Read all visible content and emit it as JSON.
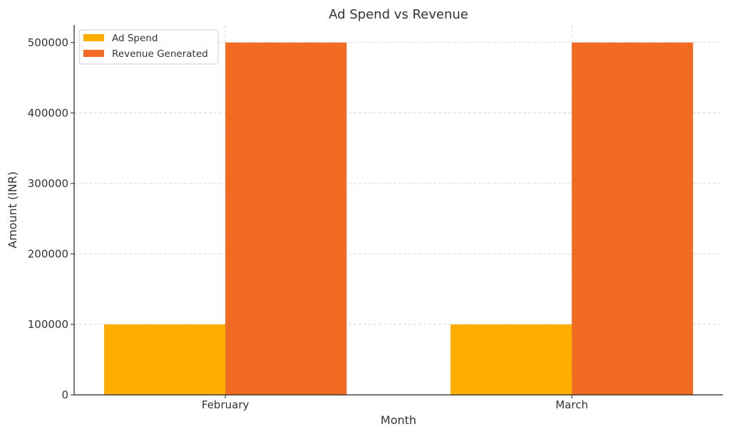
{
  "chart_data": {
    "type": "bar",
    "title": "Ad Spend vs Revenue",
    "xlabel": "Month",
    "ylabel": "Amount (INR)",
    "categories": [
      "February",
      "March"
    ],
    "series": [
      {
        "name": "Ad Spend",
        "values": [
          100000,
          100000
        ],
        "color": "#FFAE00"
      },
      {
        "name": "Revenue Generated",
        "values": [
          500000,
          500000
        ],
        "color": "#F26B22"
      }
    ],
    "ylim": [
      0,
      525000
    ],
    "yticks": [
      0,
      100000,
      200000,
      300000,
      400000,
      500000
    ],
    "ytick_labels": [
      "0",
      "100000",
      "200000",
      "300000",
      "400000",
      "500000"
    ],
    "grid": true,
    "legend_position": "top-left"
  }
}
